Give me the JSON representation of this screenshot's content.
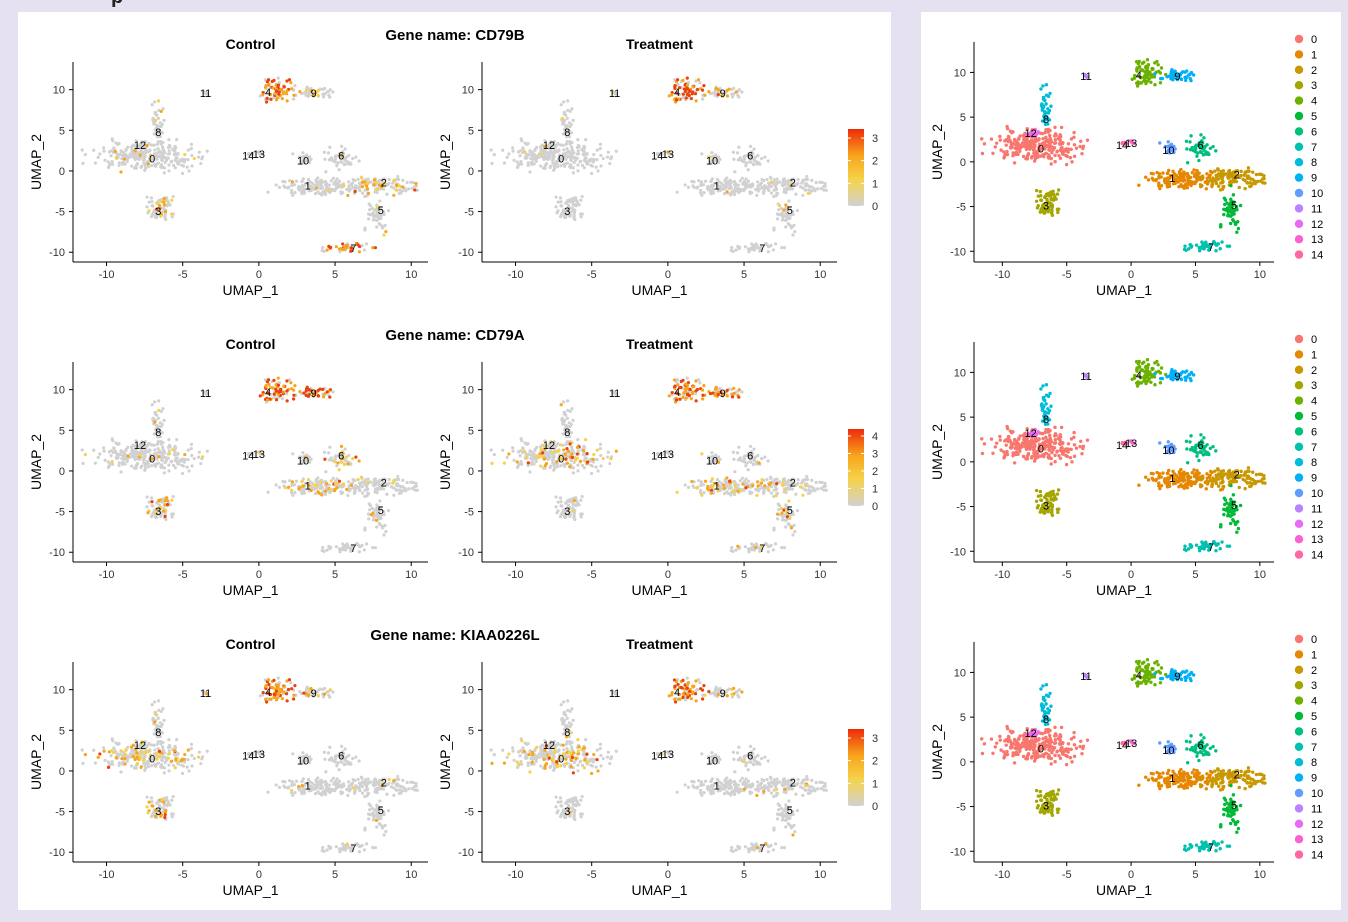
{
  "page": {
    "header_fragment": "p"
  },
  "umap": {
    "xlabel": "UMAP_1",
    "ylabel": "UMAP_2",
    "xlim": [
      -12.2,
      11.1
    ],
    "ylim": [
      -11.2,
      13.4
    ],
    "xticks": [
      -10,
      -5,
      0,
      5,
      10
    ],
    "yticks": [
      -10,
      -5,
      0,
      5,
      10
    ],
    "cluster_label_positions": [
      {
        "id": "0",
        "x": -7.0,
        "y": 1.5
      },
      {
        "id": "1",
        "x": 3.2,
        "y": -1.8
      },
      {
        "id": "2",
        "x": 8.2,
        "y": -1.4
      },
      {
        "id": "3",
        "x": -6.6,
        "y": -4.9
      },
      {
        "id": "4",
        "x": 0.6,
        "y": 9.7
      },
      {
        "id": "5",
        "x": 8.0,
        "y": -4.8
      },
      {
        "id": "6",
        "x": 5.4,
        "y": 1.9
      },
      {
        "id": "7",
        "x": 6.2,
        "y": -9.5
      },
      {
        "id": "8",
        "x": -6.6,
        "y": 4.8
      },
      {
        "id": "9",
        "x": 3.6,
        "y": 9.6
      },
      {
        "id": "10",
        "x": 2.9,
        "y": 1.3
      },
      {
        "id": "11",
        "x": -3.5,
        "y": 9.6
      },
      {
        "id": "12",
        "x": -7.8,
        "y": 3.2
      },
      {
        "id": "13",
        "x": 0.0,
        "y": 2.1
      },
      {
        "id": "14",
        "x": -0.7,
        "y": 1.9
      }
    ]
  },
  "chart_data": [
    {
      "type": "scatter",
      "title": "Gene name: CD79B",
      "panels": [
        {
          "subtitle": "Control",
          "high_clusters": [
            "4",
            "7"
          ],
          "mid_clusters": [
            "3",
            "9",
            "2"
          ],
          "density": 0.1
        },
        {
          "subtitle": "Treatment",
          "high_clusters": [
            "4"
          ],
          "mid_clusters": [
            "9"
          ],
          "density": 0.06
        }
      ],
      "colorbar": {
        "ticks": [
          0,
          1,
          2,
          3
        ],
        "max": 3.4
      },
      "xlabel": "UMAP_1",
      "ylabel": "UMAP_2"
    },
    {
      "type": "scatter",
      "title": "Gene name: CD79A",
      "panels": [
        {
          "subtitle": "Control",
          "high_clusters": [
            "4",
            "9"
          ],
          "mid_clusters": [
            "1",
            "3",
            "6"
          ],
          "density": 0.1
        },
        {
          "subtitle": "Treatment",
          "high_clusters": [
            "4",
            "9"
          ],
          "mid_clusters": [
            "1",
            "0",
            "5"
          ],
          "density": 0.08
        }
      ],
      "colorbar": {
        "ticks": [
          0,
          1,
          2,
          3,
          4
        ],
        "max": 4.4
      },
      "xlabel": "UMAP_1",
      "ylabel": "UMAP_2"
    },
    {
      "type": "scatter",
      "title": "Gene name: KIAA0226L",
      "panels": [
        {
          "subtitle": "Control",
          "high_clusters": [
            "4"
          ],
          "mid_clusters": [
            "0",
            "3",
            "9"
          ],
          "density": 0.07
        },
        {
          "subtitle": "Treatment",
          "high_clusters": [
            "4"
          ],
          "mid_clusters": [
            "0",
            "9"
          ],
          "density": 0.05
        }
      ],
      "colorbar": {
        "ticks": [
          0,
          1,
          2,
          3
        ],
        "max": 3.4
      },
      "xlabel": "UMAP_1",
      "ylabel": "UMAP_2"
    },
    {
      "type": "scatter",
      "title": "",
      "legend": {
        "position": "right",
        "entries": [
          "0",
          "1",
          "2",
          "3",
          "4",
          "5",
          "6",
          "7",
          "8",
          "9",
          "10",
          "11",
          "12",
          "13",
          "14"
        ]
      },
      "colors": [
        "#F8766D",
        "#E58700",
        "#C99800",
        "#A3A500",
        "#6BB100",
        "#00BA38",
        "#00BF7D",
        "#00C0AF",
        "#00BCD8",
        "#00B0F6",
        "#619CFF",
        "#B983FF",
        "#E76BF3",
        "#FD61D1",
        "#FF67A4"
      ],
      "xlabel": "UMAP_1",
      "ylabel": "UMAP_2",
      "repeated": 3
    }
  ]
}
